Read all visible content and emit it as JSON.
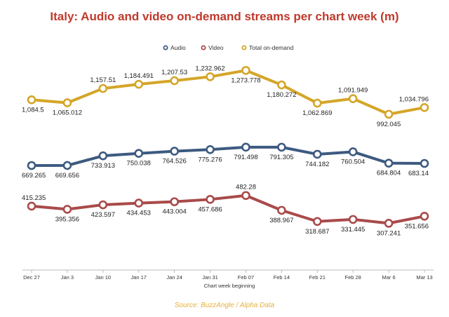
{
  "chart_data": {
    "type": "line",
    "title": "Italy: Audio and video on-demand streams per chart week (m)",
    "xlabel": "Chart week beginning",
    "ylabel": "",
    "categories": [
      "Dec 27",
      "Jan 3",
      "Jan 10",
      "Jan 17",
      "Jan 24",
      "Jan 31",
      "Feb 07",
      "Feb 14",
      "Feb 21",
      "Feb 28",
      "Mar 6",
      "Mar 13"
    ],
    "series": [
      {
        "name": "Audio",
        "color": "#3d5a80",
        "values": [
          669.265,
          669.656,
          733.913,
          750.038,
          764.526,
          775.276,
          791.498,
          791.305,
          744.182,
          760.504,
          684.804,
          683.14
        ],
        "labels": [
          "669.265",
          "669.656",
          "733.913",
          "750.038",
          "764.526",
          "775.276",
          "791.498",
          "791.305",
          "744.182",
          "760.504",
          "684.804",
          "683.14"
        ]
      },
      {
        "name": "Video",
        "color": "#a94a4a",
        "values": [
          415.235,
          395.356,
          423.597,
          434.453,
          443.004,
          457.686,
          482.28,
          388.967,
          318.687,
          331.445,
          307.241,
          351.656
        ],
        "labels": [
          "415.235",
          "395.356",
          "423.597",
          "434.453",
          "443.004",
          "457.686",
          "482.28",
          "388.967",
          "318.687",
          "331.445",
          "307.241",
          "351.656"
        ]
      },
      {
        "name": "Total on-demand",
        "color": "#d4a628",
        "values": [
          1084.5,
          1065.012,
          1157.51,
          1184.491,
          1207.53,
          1232.962,
          1273.778,
          1180.272,
          1062.869,
          1091.949,
          992.045,
          1034.796
        ],
        "labels": [
          "1,084.5",
          "1,065.012",
          "1,157.51",
          "1,184.491",
          "1,207.53",
          "1,232.962",
          "1,273.778",
          "1,180.272",
          "1,062.869",
          "1,091.949",
          "992.045",
          "1,034.796"
        ]
      }
    ],
    "legend": "top-center",
    "grid": false,
    "source": "Source: BuzzAngle / Alpha Data"
  }
}
